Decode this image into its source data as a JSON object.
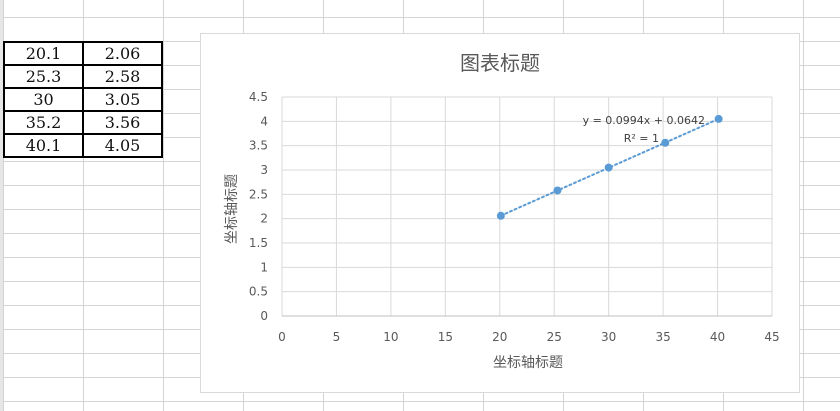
{
  "table": {
    "rows": [
      [
        "20.1",
        "2.06"
      ],
      [
        "25.3",
        "2.58"
      ],
      [
        "30",
        "3.05"
      ],
      [
        "35.2",
        "3.56"
      ],
      [
        "40.1",
        "4.05"
      ]
    ]
  },
  "chart_data": {
    "type": "scatter",
    "title": "图表标题",
    "xlabel": "坐标轴标题",
    "ylabel": "坐标轴标题",
    "xlim": [
      0,
      45
    ],
    "ylim": [
      0,
      4.5
    ],
    "x_ticks": [
      0,
      5,
      10,
      15,
      20,
      25,
      30,
      35,
      40,
      45
    ],
    "y_ticks": [
      0,
      0.5,
      1,
      1.5,
      2,
      2.5,
      3,
      3.5,
      4,
      4.5
    ],
    "x_tick_labels": [
      "0",
      "5",
      "10",
      "15",
      "20",
      "25",
      "30",
      "35",
      "40",
      "45"
    ],
    "y_tick_labels": [
      "0",
      "0.5",
      "1",
      "1.5",
      "2",
      "2.5",
      "3",
      "3.5",
      "4",
      "4.5"
    ],
    "grid": true,
    "legend": "none",
    "series": [
      {
        "x": [
          20.1,
          25.3,
          30,
          35.2,
          40.1
        ],
        "y": [
          2.06,
          2.58,
          3.05,
          3.56,
          4.05
        ],
        "color": "#5b9bd5"
      }
    ],
    "trendline": {
      "type": "linear",
      "slope": 0.0994,
      "intercept": 0.0642,
      "equation_label": "y = 0.0994x + 0.0642",
      "r2_label": "R² = 1",
      "color": "#5b9bd5",
      "style": "dotted"
    }
  }
}
